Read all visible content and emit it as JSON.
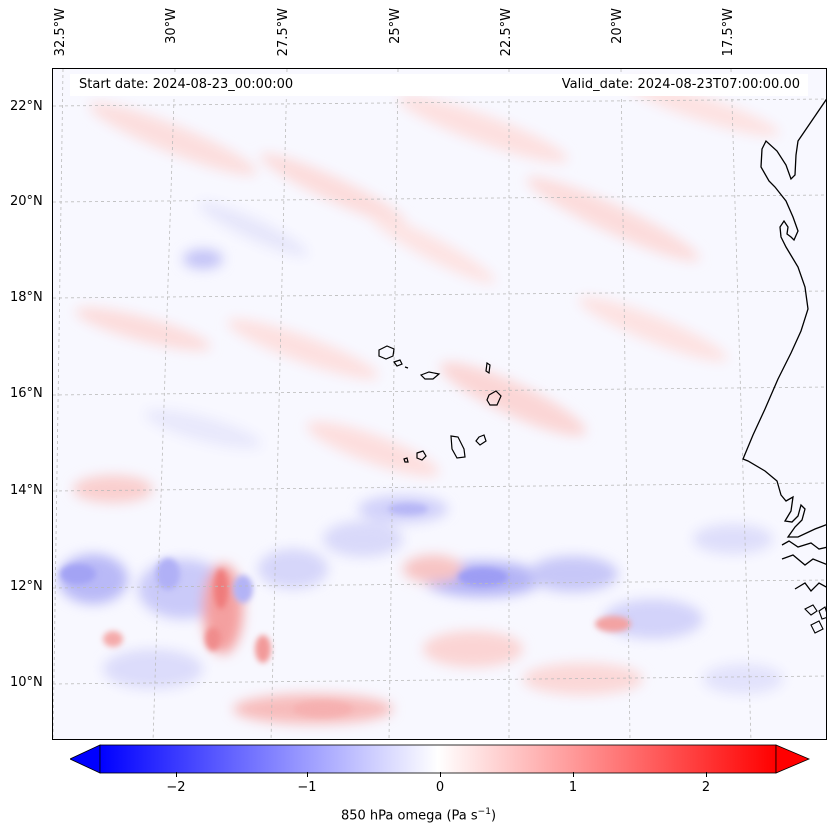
{
  "map": {
    "start_date": "Start date: 2024-08-23_00:00:00",
    "valid_date": "Valid_date: 2024-08-23T07:00:00.00",
    "lon_labels": [
      "32.5°W",
      "30°W",
      "27.5°W",
      "25°W",
      "22.5°W",
      "20°W",
      "17.5°W"
    ],
    "lat_labels": [
      "22°N",
      "20°N",
      "18°N",
      "16°N",
      "14°N",
      "12°N",
      "10°N"
    ],
    "projection": "Lambert conformal",
    "coastline": "West Africa (Senegal, Mauritania, Gambia, Guinea-Bissau) and Cape Verde Islands",
    "field": "850 hPa omega",
    "grid": "dashed gray graticule"
  },
  "colorbar": {
    "label": "850 hPa omega (Pa s",
    "label_sup": "−1",
    "label_end": ")",
    "ticks": [
      "−2",
      "−1",
      "0",
      "1",
      "2"
    ],
    "range": [
      -2.6,
      2.6
    ],
    "colormap": "bwr",
    "colors": {
      "low": "#0000ff",
      "mid": "#ffffff",
      "high": "#ff0000"
    },
    "extend": "both"
  }
}
